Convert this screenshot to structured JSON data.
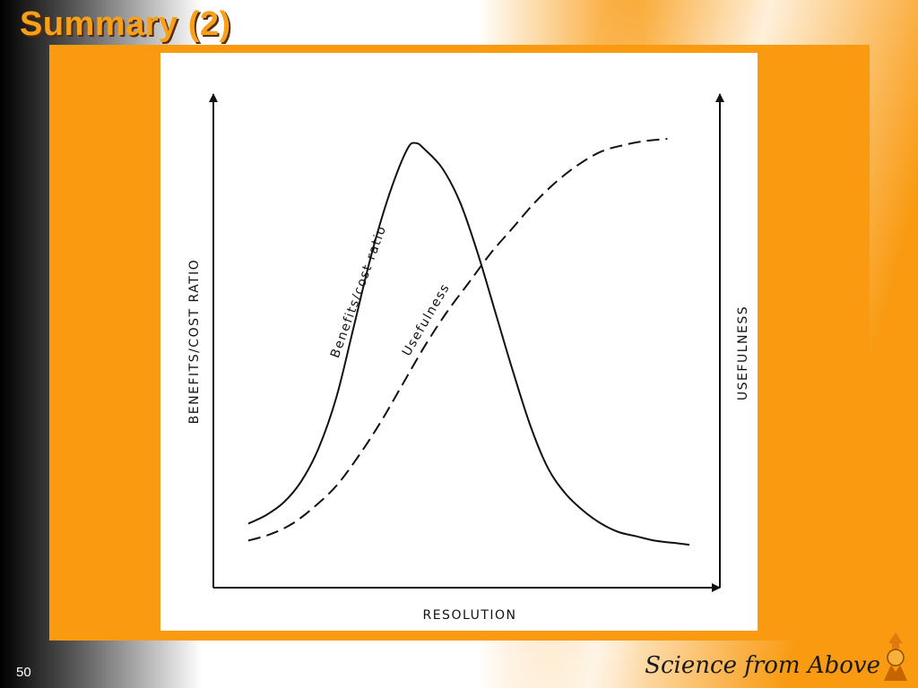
{
  "slide": {
    "title": "Summary (2)",
    "number": "50",
    "brand": "Science from Above"
  },
  "colors": {
    "accent_orange": "#f99a10",
    "title_orange": "#f7a11a",
    "ink": "#111111"
  },
  "chart_data": {
    "type": "line",
    "xlabel": "RESOLUTION",
    "ylabel_left": "BENEFITS/COST RATIO",
    "ylabel_right": "USEFULNESS",
    "grid": false,
    "xlim": [
      0,
      1
    ],
    "ylim": [
      0,
      1
    ],
    "series": [
      {
        "name": "Benefits/cost ratio",
        "style": "solid",
        "x": [
          0.0,
          0.04,
          0.08,
          0.12,
          0.16,
          0.2,
          0.24,
          0.28,
          0.32,
          0.36,
          0.38,
          0.4,
          0.44,
          0.48,
          0.52,
          0.56,
          0.6,
          0.64,
          0.68,
          0.72,
          0.76,
          0.8,
          0.84,
          0.88,
          0.92,
          0.96,
          1.0
        ],
        "y": [
          0.09,
          0.11,
          0.14,
          0.19,
          0.27,
          0.39,
          0.56,
          0.73,
          0.87,
          0.975,
          0.99,
          0.975,
          0.93,
          0.85,
          0.73,
          0.59,
          0.45,
          0.32,
          0.22,
          0.16,
          0.12,
          0.09,
          0.07,
          0.06,
          0.05,
          0.045,
          0.04
        ]
      },
      {
        "name": "Usefulness",
        "style": "dashed",
        "x": [
          0.0,
          0.05,
          0.1,
          0.15,
          0.2,
          0.25,
          0.3,
          0.35,
          0.4,
          0.45,
          0.5,
          0.55,
          0.6,
          0.65,
          0.7,
          0.75,
          0.8,
          0.85,
          0.9,
          0.95
        ],
        "y": [
          0.05,
          0.065,
          0.09,
          0.13,
          0.18,
          0.25,
          0.33,
          0.42,
          0.51,
          0.59,
          0.66,
          0.73,
          0.79,
          0.85,
          0.9,
          0.94,
          0.97,
          0.985,
          0.995,
          1.0
        ]
      }
    ]
  }
}
